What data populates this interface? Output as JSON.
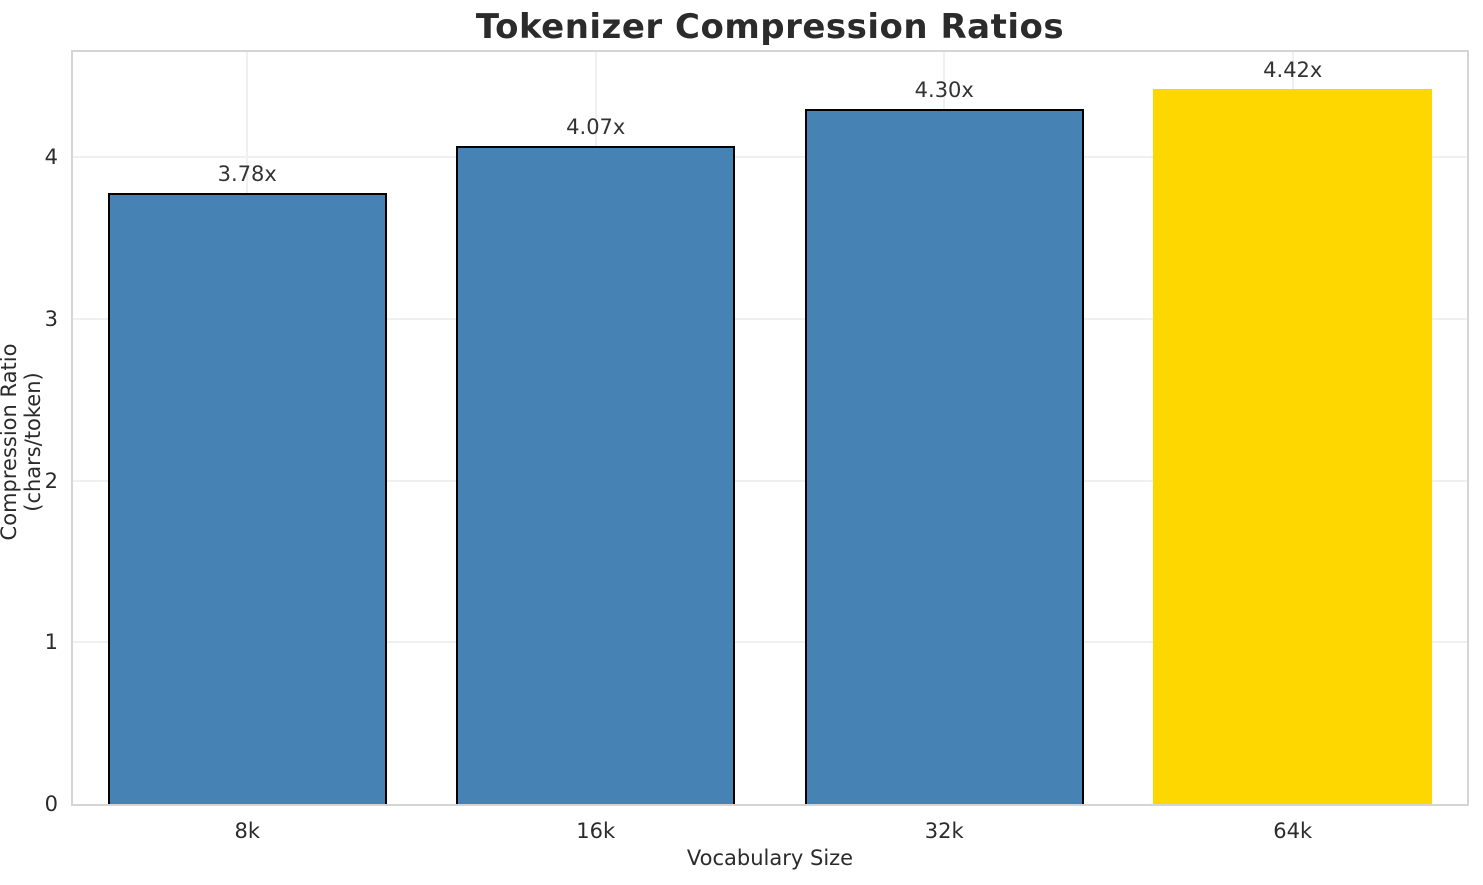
{
  "chart_data": {
    "type": "bar",
    "title": "Tokenizer Compression Ratios",
    "xlabel": "Vocabulary Size",
    "ylabel": "Compression Ratio (chars/token)",
    "categories": [
      "8k",
      "16k",
      "32k",
      "64k"
    ],
    "values": [
      3.78,
      4.07,
      4.3,
      4.42
    ],
    "bar_labels": [
      "3.78x",
      "4.07x",
      "4.30x",
      "4.42x"
    ],
    "bar_colors": [
      "#4682b4",
      "#4682b4",
      "#4682b4",
      "#ffd700"
    ],
    "bar_edge_colors": [
      "#000000",
      "#000000",
      "#000000",
      "none"
    ],
    "highlight_category": "64k",
    "yticks": [
      0,
      1,
      2,
      3,
      4
    ],
    "ylim": [
      0,
      4.65
    ],
    "grid": true,
    "legend": "none",
    "colors": {
      "bar_default": "#4682b4",
      "bar_highlight": "#ffd700",
      "bar_edge": "#000000",
      "grid": "#f0f0f0",
      "spine": "#d5d5d5",
      "text": "#2b2b2b",
      "value_label_text": "#333333",
      "background": "#ffffff"
    }
  }
}
